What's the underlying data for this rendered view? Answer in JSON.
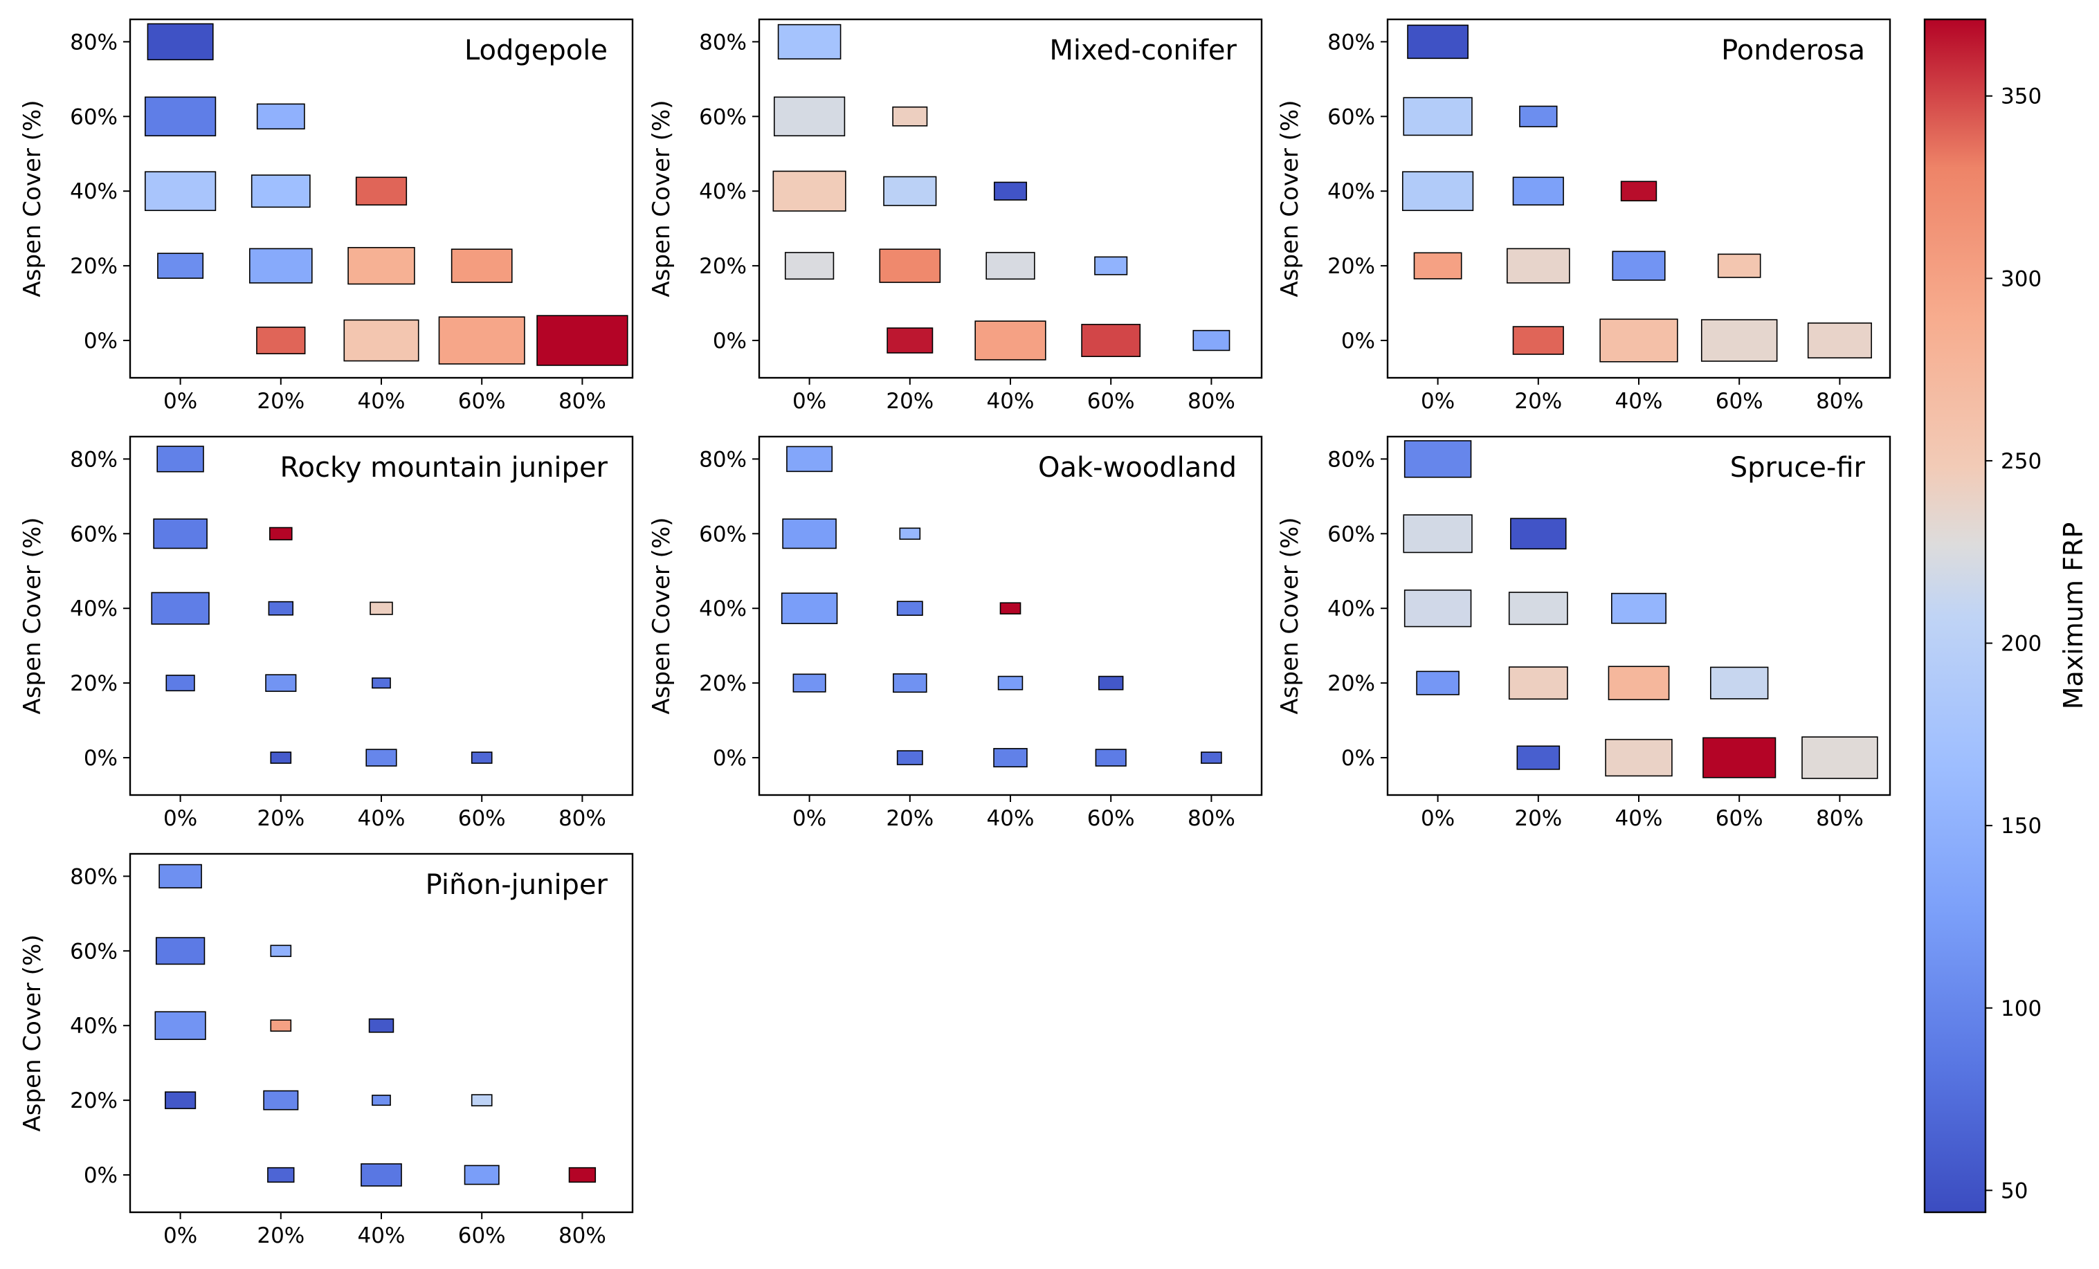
{
  "chart_data": {
    "type": "heatmap",
    "description": "Grid of bubble-style rectangles; rectangle colour encodes Maximum FRP. Rectangle size varies by cell.",
    "x_categories": [
      "0%",
      "20%",
      "40%",
      "60%",
      "80%"
    ],
    "y_categories": [
      "0%",
      "20%",
      "40%",
      "60%",
      "80%"
    ],
    "ylabel": "Aspen Cover (%)",
    "colorbar": {
      "label": "Maximum FRP",
      "range": [
        44,
        371
      ],
      "ticks": [
        50,
        100,
        150,
        200,
        250,
        300,
        350
      ],
      "colormap": "coolwarm"
    },
    "panels": [
      {
        "title": "Lodgepole",
        "cells": [
          {
            "x": "0%",
            "y": "80%",
            "frp": 50,
            "w": 0.65,
            "h": 0.65
          },
          {
            "x": "0%",
            "y": "60%",
            "frp": 92,
            "w": 0.7,
            "h": 0.7
          },
          {
            "x": "20%",
            "y": "60%",
            "frp": 150,
            "w": 0.47,
            "h": 0.45
          },
          {
            "x": "0%",
            "y": "40%",
            "frp": 180,
            "w": 0.7,
            "h": 0.7
          },
          {
            "x": "20%",
            "y": "40%",
            "frp": 168,
            "w": 0.58,
            "h": 0.58
          },
          {
            "x": "40%",
            "y": "40%",
            "frp": 340,
            "w": 0.5,
            "h": 0.5
          },
          {
            "x": "0%",
            "y": "20%",
            "frp": 108,
            "w": 0.45,
            "h": 0.45
          },
          {
            "x": "20%",
            "y": "20%",
            "frp": 140,
            "w": 0.62,
            "h": 0.62
          },
          {
            "x": "40%",
            "y": "20%",
            "frp": 283,
            "w": 0.66,
            "h": 0.66
          },
          {
            "x": "60%",
            "y": "20%",
            "frp": 305,
            "w": 0.6,
            "h": 0.6
          },
          {
            "x": "20%",
            "y": "0%",
            "frp": 340,
            "w": 0.48,
            "h": 0.48
          },
          {
            "x": "40%",
            "y": "0%",
            "frp": 255,
            "w": 0.74,
            "h": 0.74
          },
          {
            "x": "60%",
            "y": "0%",
            "frp": 295,
            "w": 0.85,
            "h": 0.85
          },
          {
            "x": "80%",
            "y": "0%",
            "frp": 371,
            "w": 0.9,
            "h": 0.9
          }
        ]
      },
      {
        "title": "Mixed-conifer",
        "cells": [
          {
            "x": "0%",
            "y": "80%",
            "frp": 175,
            "w": 0.62,
            "h": 0.62
          },
          {
            "x": "0%",
            "y": "60%",
            "frp": 222,
            "w": 0.7,
            "h": 0.7
          },
          {
            "x": "20%",
            "y": "60%",
            "frp": 243,
            "w": 0.34,
            "h": 0.34
          },
          {
            "x": "0%",
            "y": "40%",
            "frp": 247,
            "w": 0.72,
            "h": 0.72
          },
          {
            "x": "20%",
            "y": "40%",
            "frp": 202,
            "w": 0.52,
            "h": 0.52
          },
          {
            "x": "40%",
            "y": "40%",
            "frp": 52,
            "w": 0.32,
            "h": 0.32
          },
          {
            "x": "0%",
            "y": "20%",
            "frp": 225,
            "w": 0.48,
            "h": 0.48
          },
          {
            "x": "20%",
            "y": "20%",
            "frp": 325,
            "w": 0.6,
            "h": 0.6
          },
          {
            "x": "40%",
            "y": "20%",
            "frp": 223,
            "w": 0.48,
            "h": 0.48
          },
          {
            "x": "60%",
            "y": "20%",
            "frp": 152,
            "w": 0.32,
            "h": 0.32
          },
          {
            "x": "20%",
            "y": "0%",
            "frp": 365,
            "w": 0.45,
            "h": 0.45
          },
          {
            "x": "40%",
            "y": "0%",
            "frp": 300,
            "w": 0.7,
            "h": 0.7
          },
          {
            "x": "60%",
            "y": "0%",
            "frp": 350,
            "w": 0.58,
            "h": 0.58
          },
          {
            "x": "80%",
            "y": "0%",
            "frp": 138,
            "w": 0.36,
            "h": 0.36
          }
        ]
      },
      {
        "title": "Ponderosa",
        "cells": [
          {
            "x": "0%",
            "y": "80%",
            "frp": 50,
            "w": 0.6,
            "h": 0.6
          },
          {
            "x": "0%",
            "y": "60%",
            "frp": 192,
            "w": 0.68,
            "h": 0.68
          },
          {
            "x": "20%",
            "y": "60%",
            "frp": 108,
            "w": 0.37,
            "h": 0.37
          },
          {
            "x": "0%",
            "y": "40%",
            "frp": 190,
            "w": 0.7,
            "h": 0.7
          },
          {
            "x": "20%",
            "y": "40%",
            "frp": 128,
            "w": 0.5,
            "h": 0.5
          },
          {
            "x": "40%",
            "y": "40%",
            "frp": 368,
            "w": 0.35,
            "h": 0.35
          },
          {
            "x": "0%",
            "y": "20%",
            "frp": 300,
            "w": 0.47,
            "h": 0.47
          },
          {
            "x": "20%",
            "y": "20%",
            "frp": 237,
            "w": 0.62,
            "h": 0.62
          },
          {
            "x": "40%",
            "y": "20%",
            "frp": 115,
            "w": 0.52,
            "h": 0.52
          },
          {
            "x": "60%",
            "y": "20%",
            "frp": 255,
            "w": 0.42,
            "h": 0.42
          },
          {
            "x": "20%",
            "y": "0%",
            "frp": 340,
            "w": 0.5,
            "h": 0.5
          },
          {
            "x": "40%",
            "y": "0%",
            "frp": 263,
            "w": 0.77,
            "h": 0.77
          },
          {
            "x": "60%",
            "y": "0%",
            "frp": 235,
            "w": 0.75,
            "h": 0.75
          },
          {
            "x": "80%",
            "y": "0%",
            "frp": 238,
            "w": 0.63,
            "h": 0.63
          }
        ]
      },
      {
        "title": "Rocky mountain juniper",
        "cells": [
          {
            "x": "0%",
            "y": "80%",
            "frp": 95,
            "w": 0.46,
            "h": 0.46
          },
          {
            "x": "0%",
            "y": "60%",
            "frp": 90,
            "w": 0.53,
            "h": 0.53
          },
          {
            "x": "20%",
            "y": "60%",
            "frp": 371,
            "w": 0.22,
            "h": 0.22
          },
          {
            "x": "0%",
            "y": "40%",
            "frp": 92,
            "w": 0.57,
            "h": 0.57
          },
          {
            "x": "20%",
            "y": "40%",
            "frp": 78,
            "w": 0.24,
            "h": 0.24
          },
          {
            "x": "40%",
            "y": "40%",
            "frp": 243,
            "w": 0.22,
            "h": 0.22
          },
          {
            "x": "0%",
            "y": "20%",
            "frp": 90,
            "w": 0.28,
            "h": 0.28
          },
          {
            "x": "20%",
            "y": "20%",
            "frp": 115,
            "w": 0.3,
            "h": 0.3
          },
          {
            "x": "40%",
            "y": "20%",
            "frp": 78,
            "w": 0.18,
            "h": 0.18
          },
          {
            "x": "20%",
            "y": "0%",
            "frp": 58,
            "w": 0.2,
            "h": 0.2
          },
          {
            "x": "40%",
            "y": "0%",
            "frp": 100,
            "w": 0.3,
            "h": 0.3
          },
          {
            "x": "60%",
            "y": "0%",
            "frp": 70,
            "w": 0.2,
            "h": 0.2
          }
        ]
      },
      {
        "title": "Oak-woodland",
        "cells": [
          {
            "x": "0%",
            "y": "80%",
            "frp": 135,
            "w": 0.45,
            "h": 0.45
          },
          {
            "x": "0%",
            "y": "60%",
            "frp": 125,
            "w": 0.53,
            "h": 0.53
          },
          {
            "x": "20%",
            "y": "60%",
            "frp": 158,
            "w": 0.2,
            "h": 0.2
          },
          {
            "x": "0%",
            "y": "40%",
            "frp": 125,
            "w": 0.55,
            "h": 0.55
          },
          {
            "x": "20%",
            "y": "40%",
            "frp": 92,
            "w": 0.25,
            "h": 0.25
          },
          {
            "x": "40%",
            "y": "40%",
            "frp": 371,
            "w": 0.2,
            "h": 0.2
          },
          {
            "x": "0%",
            "y": "20%",
            "frp": 115,
            "w": 0.32,
            "h": 0.32
          },
          {
            "x": "20%",
            "y": "20%",
            "frp": 112,
            "w": 0.33,
            "h": 0.33
          },
          {
            "x": "40%",
            "y": "20%",
            "frp": 125,
            "w": 0.24,
            "h": 0.24
          },
          {
            "x": "60%",
            "y": "20%",
            "frp": 55,
            "w": 0.24,
            "h": 0.24
          },
          {
            "x": "20%",
            "y": "0%",
            "frp": 78,
            "w": 0.25,
            "h": 0.25
          },
          {
            "x": "40%",
            "y": "0%",
            "frp": 95,
            "w": 0.33,
            "h": 0.33
          },
          {
            "x": "60%",
            "y": "0%",
            "frp": 90,
            "w": 0.3,
            "h": 0.3
          },
          {
            "x": "80%",
            "y": "0%",
            "frp": 70,
            "w": 0.2,
            "h": 0.2
          }
        ]
      },
      {
        "title": "Spruce-fir",
        "cells": [
          {
            "x": "0%",
            "y": "80%",
            "frp": 100,
            "w": 0.66,
            "h": 0.66
          },
          {
            "x": "0%",
            "y": "60%",
            "frp": 220,
            "w": 0.68,
            "h": 0.68
          },
          {
            "x": "20%",
            "y": "60%",
            "frp": 52,
            "w": 0.55,
            "h": 0.55
          },
          {
            "x": "0%",
            "y": "40%",
            "frp": 218,
            "w": 0.66,
            "h": 0.66
          },
          {
            "x": "20%",
            "y": "40%",
            "frp": 222,
            "w": 0.58,
            "h": 0.58
          },
          {
            "x": "40%",
            "y": "40%",
            "frp": 155,
            "w": 0.54,
            "h": 0.54
          },
          {
            "x": "0%",
            "y": "20%",
            "frp": 118,
            "w": 0.42,
            "h": 0.42
          },
          {
            "x": "20%",
            "y": "20%",
            "frp": 243,
            "w": 0.58,
            "h": 0.58
          },
          {
            "x": "40%",
            "y": "20%",
            "frp": 275,
            "w": 0.6,
            "h": 0.6
          },
          {
            "x": "60%",
            "y": "20%",
            "frp": 212,
            "w": 0.57,
            "h": 0.57
          },
          {
            "x": "20%",
            "y": "0%",
            "frp": 62,
            "w": 0.42,
            "h": 0.42
          },
          {
            "x": "40%",
            "y": "0%",
            "frp": 240,
            "w": 0.66,
            "h": 0.66
          },
          {
            "x": "60%",
            "y": "0%",
            "frp": 371,
            "w": 0.72,
            "h": 0.72
          },
          {
            "x": "80%",
            "y": "0%",
            "frp": 230,
            "w": 0.75,
            "h": 0.75
          }
        ]
      },
      {
        "title": "Piñon-juniper",
        "cells": [
          {
            "x": "0%",
            "y": "80%",
            "frp": 110,
            "w": 0.42,
            "h": 0.42
          },
          {
            "x": "0%",
            "y": "60%",
            "frp": 88,
            "w": 0.48,
            "h": 0.48
          },
          {
            "x": "20%",
            "y": "60%",
            "frp": 150,
            "w": 0.2,
            "h": 0.2
          },
          {
            "x": "0%",
            "y": "40%",
            "frp": 115,
            "w": 0.5,
            "h": 0.5
          },
          {
            "x": "20%",
            "y": "40%",
            "frp": 300,
            "w": 0.2,
            "h": 0.2
          },
          {
            "x": "40%",
            "y": "40%",
            "frp": 55,
            "w": 0.24,
            "h": 0.24
          },
          {
            "x": "0%",
            "y": "20%",
            "frp": 55,
            "w": 0.3,
            "h": 0.3
          },
          {
            "x": "20%",
            "y": "20%",
            "frp": 100,
            "w": 0.34,
            "h": 0.34
          },
          {
            "x": "40%",
            "y": "20%",
            "frp": 110,
            "w": 0.18,
            "h": 0.18
          },
          {
            "x": "60%",
            "y": "20%",
            "frp": 205,
            "w": 0.2,
            "h": 0.2
          },
          {
            "x": "20%",
            "y": "0%",
            "frp": 68,
            "w": 0.26,
            "h": 0.26
          },
          {
            "x": "40%",
            "y": "0%",
            "frp": 85,
            "w": 0.4,
            "h": 0.4
          },
          {
            "x": "60%",
            "y": "0%",
            "frp": 125,
            "w": 0.34,
            "h": 0.34
          },
          {
            "x": "80%",
            "y": "0%",
            "frp": 371,
            "w": 0.26,
            "h": 0.26
          }
        ]
      }
    ]
  }
}
